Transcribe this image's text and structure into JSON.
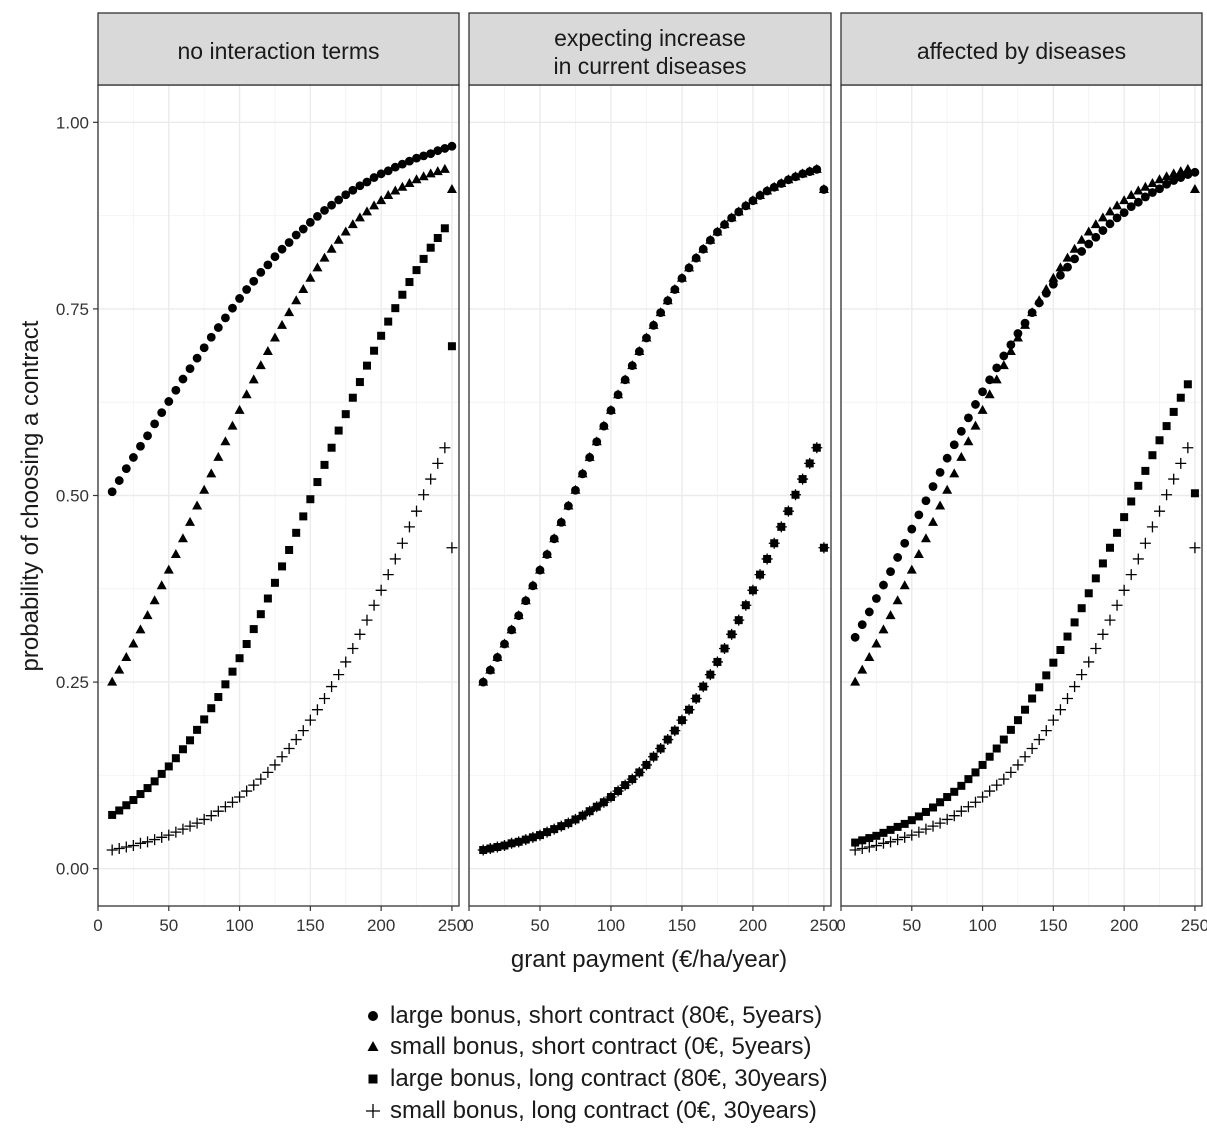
{
  "chart_data": {
    "type": "scatter",
    "facets": [
      {
        "strip": [
          "no interaction terms"
        ]
      },
      {
        "strip": [
          "expecting increase",
          "in current diseases"
        ]
      },
      {
        "strip": [
          "affected by diseases"
        ]
      }
    ],
    "xlabel": "grant payment (€/ha/year)",
    "ylabel": "probability of choosing a contract",
    "xlim": [
      0,
      255
    ],
    "ylim": [
      -0.05,
      1.05
    ],
    "xticks": [
      0,
      50,
      100,
      150,
      200,
      250
    ],
    "xtick_labels": [
      "0",
      "50",
      "100",
      "150",
      "200",
      "250"
    ],
    "yticks": [
      0,
      0.25,
      0.5,
      0.75,
      1.0
    ],
    "ytick_labels": [
      "0.00",
      "0.25",
      "0.50",
      "0.75",
      "1.00"
    ],
    "grid": true,
    "legend_position": "bottom",
    "x": [
      10,
      15,
      20,
      25,
      30,
      35,
      40,
      45,
      50,
      55,
      60,
      65,
      70,
      75,
      80,
      85,
      90,
      95,
      100,
      105,
      110,
      115,
      120,
      125,
      130,
      135,
      140,
      145,
      150,
      155,
      160,
      165,
      170,
      175,
      180,
      185,
      190,
      195,
      200,
      205,
      210,
      215,
      220,
      225,
      230,
      235,
      240,
      245,
      250
    ],
    "series": [
      {
        "name": "large bonus, short contract (80€, 5years)",
        "marker": "circle",
        "values": [
          [
            0.505,
            0.52,
            0.536,
            0.551,
            0.566,
            0.58,
            0.596,
            0.611,
            0.626,
            0.641,
            0.656,
            0.67,
            0.684,
            0.698,
            0.712,
            0.725,
            0.738,
            0.751,
            0.764,
            0.776,
            0.787,
            0.799,
            0.809,
            0.82,
            0.83,
            0.839,
            0.849,
            0.857,
            0.866,
            0.874,
            0.882,
            0.889,
            0.896,
            0.903,
            0.909,
            0.915,
            0.92,
            0.926,
            0.931,
            0.935,
            0.94,
            0.944,
            0.948,
            0.952,
            0.955,
            0.958,
            0.962,
            0.965,
            0.968
          ],
          [
            0.25,
            0.266,
            0.283,
            0.301,
            0.32,
            0.339,
            0.359,
            0.379,
            0.4,
            0.421,
            0.442,
            0.464,
            0.486,
            0.507,
            0.529,
            0.551,
            0.572,
            0.593,
            0.614,
            0.635,
            0.655,
            0.674,
            0.693,
            0.711,
            0.728,
            0.745,
            0.761,
            0.776,
            0.791,
            0.805,
            0.818,
            0.83,
            0.842,
            0.853,
            0.863,
            0.872,
            0.88,
            0.888,
            0.895,
            0.902,
            0.908,
            0.913,
            0.918,
            0.923,
            0.927,
            0.931,
            0.934,
            0.937,
            0.91
          ],
          [
            0.31,
            0.327,
            0.344,
            0.362,
            0.38,
            0.398,
            0.417,
            0.436,
            0.455,
            0.474,
            0.493,
            0.512,
            0.531,
            0.55,
            0.568,
            0.586,
            0.604,
            0.622,
            0.639,
            0.655,
            0.671,
            0.687,
            0.702,
            0.717,
            0.731,
            0.745,
            0.758,
            0.771,
            0.783,
            0.795,
            0.806,
            0.817,
            0.827,
            0.837,
            0.846,
            0.855,
            0.864,
            0.872,
            0.879,
            0.887,
            0.893,
            0.9,
            0.906,
            0.911,
            0.917,
            0.922,
            0.926,
            0.93,
            0.933
          ]
        ]
      },
      {
        "name": "small bonus, short contract (0€, 5years)",
        "marker": "triangle",
        "values": [
          [
            0.25,
            0.266,
            0.283,
            0.301,
            0.32,
            0.339,
            0.359,
            0.379,
            0.4,
            0.421,
            0.442,
            0.464,
            0.486,
            0.507,
            0.529,
            0.551,
            0.572,
            0.593,
            0.614,
            0.635,
            0.655,
            0.674,
            0.693,
            0.711,
            0.728,
            0.745,
            0.761,
            0.776,
            0.791,
            0.805,
            0.818,
            0.83,
            0.842,
            0.853,
            0.863,
            0.872,
            0.88,
            0.888,
            0.895,
            0.902,
            0.908,
            0.913,
            0.918,
            0.923,
            0.927,
            0.931,
            0.934,
            0.937,
            0.91
          ],
          [
            0.25,
            0.266,
            0.283,
            0.301,
            0.32,
            0.339,
            0.359,
            0.379,
            0.4,
            0.421,
            0.442,
            0.464,
            0.486,
            0.507,
            0.529,
            0.551,
            0.572,
            0.593,
            0.614,
            0.635,
            0.655,
            0.674,
            0.693,
            0.711,
            0.728,
            0.745,
            0.761,
            0.776,
            0.791,
            0.805,
            0.818,
            0.83,
            0.842,
            0.853,
            0.863,
            0.872,
            0.88,
            0.888,
            0.895,
            0.902,
            0.908,
            0.913,
            0.918,
            0.923,
            0.927,
            0.931,
            0.934,
            0.937,
            0.91
          ],
          [
            0.25,
            0.266,
            0.283,
            0.301,
            0.32,
            0.339,
            0.359,
            0.379,
            0.4,
            0.421,
            0.442,
            0.464,
            0.486,
            0.507,
            0.529,
            0.551,
            0.572,
            0.593,
            0.614,
            0.635,
            0.655,
            0.674,
            0.693,
            0.711,
            0.728,
            0.745,
            0.761,
            0.776,
            0.791,
            0.805,
            0.818,
            0.83,
            0.842,
            0.853,
            0.863,
            0.872,
            0.88,
            0.888,
            0.895,
            0.902,
            0.908,
            0.913,
            0.918,
            0.923,
            0.927,
            0.931,
            0.934,
            0.937,
            0.91
          ]
        ]
      },
      {
        "name": "large bonus, long contract (80€, 30years)",
        "marker": "square",
        "values": [
          [
            0.072,
            0.078,
            0.085,
            0.092,
            0.1,
            0.108,
            0.117,
            0.127,
            0.137,
            0.148,
            0.16,
            0.172,
            0.186,
            0.2,
            0.215,
            0.23,
            0.247,
            0.264,
            0.282,
            0.301,
            0.321,
            0.341,
            0.362,
            0.383,
            0.405,
            0.427,
            0.45,
            0.472,
            0.495,
            0.518,
            0.541,
            0.564,
            0.587,
            0.609,
            0.631,
            0.652,
            0.674,
            0.694,
            0.714,
            0.733,
            0.751,
            0.769,
            0.786,
            0.802,
            0.817,
            0.832,
            0.845,
            0.858,
            0.7
          ],
          [
            0.025,
            0.027,
            0.029,
            0.031,
            0.034,
            0.036,
            0.039,
            0.042,
            0.045,
            0.049,
            0.053,
            0.057,
            0.061,
            0.066,
            0.071,
            0.077,
            0.083,
            0.089,
            0.096,
            0.104,
            0.112,
            0.12,
            0.129,
            0.139,
            0.15,
            0.161,
            0.173,
            0.185,
            0.199,
            0.213,
            0.228,
            0.244,
            0.26,
            0.277,
            0.295,
            0.314,
            0.333,
            0.353,
            0.373,
            0.394,
            0.415,
            0.436,
            0.458,
            0.479,
            0.501,
            0.522,
            0.543,
            0.564,
            0.43
          ],
          [
            0.035,
            0.038,
            0.041,
            0.044,
            0.048,
            0.052,
            0.056,
            0.06,
            0.065,
            0.07,
            0.076,
            0.082,
            0.089,
            0.096,
            0.103,
            0.111,
            0.12,
            0.129,
            0.139,
            0.15,
            0.161,
            0.173,
            0.186,
            0.199,
            0.213,
            0.228,
            0.243,
            0.259,
            0.276,
            0.293,
            0.311,
            0.33,
            0.349,
            0.369,
            0.389,
            0.409,
            0.43,
            0.45,
            0.471,
            0.492,
            0.513,
            0.533,
            0.554,
            0.574,
            0.593,
            0.612,
            0.631,
            0.649,
            0.503
          ]
        ]
      },
      {
        "name": "small bonus, long contract (0€, 30years)",
        "marker": "plus",
        "values": [
          [
            0.025,
            0.027,
            0.029,
            0.031,
            0.034,
            0.036,
            0.039,
            0.042,
            0.045,
            0.049,
            0.053,
            0.057,
            0.061,
            0.066,
            0.071,
            0.077,
            0.083,
            0.089,
            0.096,
            0.104,
            0.112,
            0.12,
            0.129,
            0.139,
            0.15,
            0.161,
            0.173,
            0.185,
            0.199,
            0.213,
            0.228,
            0.244,
            0.26,
            0.277,
            0.295,
            0.314,
            0.333,
            0.353,
            0.373,
            0.394,
            0.415,
            0.436,
            0.458,
            0.479,
            0.501,
            0.522,
            0.543,
            0.564,
            0.43
          ],
          [
            0.025,
            0.027,
            0.029,
            0.031,
            0.034,
            0.036,
            0.039,
            0.042,
            0.045,
            0.049,
            0.053,
            0.057,
            0.061,
            0.066,
            0.071,
            0.077,
            0.083,
            0.089,
            0.096,
            0.104,
            0.112,
            0.12,
            0.129,
            0.139,
            0.15,
            0.161,
            0.173,
            0.185,
            0.199,
            0.213,
            0.228,
            0.244,
            0.26,
            0.277,
            0.295,
            0.314,
            0.333,
            0.353,
            0.373,
            0.394,
            0.415,
            0.436,
            0.458,
            0.479,
            0.501,
            0.522,
            0.543,
            0.564,
            0.43
          ],
          [
            0.025,
            0.027,
            0.029,
            0.031,
            0.034,
            0.036,
            0.039,
            0.042,
            0.045,
            0.049,
            0.053,
            0.057,
            0.061,
            0.066,
            0.071,
            0.077,
            0.083,
            0.089,
            0.096,
            0.104,
            0.112,
            0.12,
            0.129,
            0.139,
            0.15,
            0.161,
            0.173,
            0.185,
            0.199,
            0.213,
            0.228,
            0.244,
            0.26,
            0.277,
            0.295,
            0.314,
            0.333,
            0.353,
            0.373,
            0.394,
            0.415,
            0.436,
            0.458,
            0.479,
            0.501,
            0.522,
            0.543,
            0.564,
            0.43
          ]
        ]
      }
    ],
    "colors": {
      "marker": "#000000",
      "strip_fill": "#d9d9d9",
      "panel_border": "#333333",
      "grid_major": "#ebebeb",
      "grid_minor": "#f4f4f4"
    }
  }
}
